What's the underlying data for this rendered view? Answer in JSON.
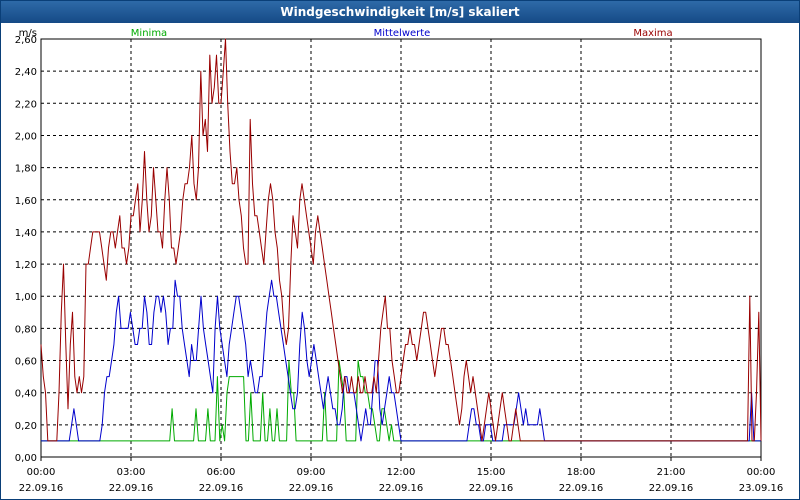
{
  "window": {
    "title": "Windgeschwindigkeit [m/s] skaliert"
  },
  "chart_data": {
    "type": "line",
    "title": "Windgeschwindigkeit [m/s] skaliert",
    "ylabel": "m/s",
    "xlabel": "",
    "ylim": [
      0,
      2.6
    ],
    "xlim": [
      0,
      24
    ],
    "grid": true,
    "y_ticks": [
      "0,00",
      "0,20",
      "0,40",
      "0,60",
      "0,80",
      "1,00",
      "1,20",
      "1,40",
      "1,60",
      "1,80",
      "2,00",
      "2,20",
      "2,40",
      "2,60"
    ],
    "x_ticks": [
      {
        "time": "00:00",
        "date": "22.09.16"
      },
      {
        "time": "03:00",
        "date": "22.09.16"
      },
      {
        "time": "06:00",
        "date": "22.09.16"
      },
      {
        "time": "09:00",
        "date": "22.09.16"
      },
      {
        "time": "12:00",
        "date": "22.09.16"
      },
      {
        "time": "15:00",
        "date": "22.09.16"
      },
      {
        "time": "18:00",
        "date": "22.09.16"
      },
      {
        "time": "21:00",
        "date": "22.09.16"
      },
      {
        "time": "00:00",
        "date": "23.09.16"
      }
    ],
    "series": [
      {
        "name": "Minima",
        "color": "#00aa00",
        "values": [
          0.1,
          0.1,
          0.1,
          0.1,
          0.1,
          0.1,
          0.1,
          0.1,
          0.1,
          0.1,
          0.1,
          0.1,
          0.1,
          0.1,
          0.1,
          0.1,
          0.1,
          0.1,
          0.1,
          0.1,
          0.1,
          0.1,
          0.1,
          0.1,
          0.1,
          0.1,
          0.1,
          0.1,
          0.1,
          0.1,
          0.1,
          0.1,
          0.1,
          0.1,
          0.1,
          0.1,
          0.1,
          0.1,
          0.1,
          0.1,
          0.1,
          0.1,
          0.1,
          0.1,
          0.1,
          0.1,
          0.1,
          0.1,
          0.1,
          0.1,
          0.1,
          0.1,
          0.1,
          0.1,
          0.1,
          0.3,
          0.1,
          0.1,
          0.1,
          0.1,
          0.1,
          0.1,
          0.1,
          0.1,
          0.1,
          0.3,
          0.1,
          0.1,
          0.1,
          0.1,
          0.3,
          0.1,
          0.1,
          0.1,
          0.5,
          0.1,
          0.2,
          0.1,
          0.4,
          0.5,
          0.5,
          0.5,
          0.5,
          0.5,
          0.5,
          0.5,
          0.1,
          0.1,
          0.4,
          0.1,
          0.1,
          0.1,
          0.1,
          0.4,
          0.1,
          0.1,
          0.3,
          0.1,
          0.1,
          0.3,
          0.1,
          0.1,
          0.1,
          0.1,
          0.6,
          0.4,
          0.4,
          0.1,
          0.1,
          0.1,
          0.1,
          0.1,
          0.1,
          0.1,
          0.1,
          0.1,
          0.1,
          0.1,
          0.1,
          0.4,
          0.1,
          0.1,
          0.1,
          0.1,
          0.1,
          0.6,
          0.5,
          0.4,
          0.1,
          0.1,
          0.1,
          0.1,
          0.1,
          0.6,
          0.5,
          0.5,
          0.4,
          0.4,
          0.3,
          0.3,
          0.2,
          0.1,
          0.1,
          0.3,
          0.3,
          0.2,
          0.1,
          0.2,
          0.1,
          0.1,
          0.1,
          0.1,
          0.1,
          0.1,
          0.1,
          0.1,
          0.1,
          0.1,
          0.1,
          0.1,
          0.1,
          0.1,
          0.1,
          0.1,
          0.1,
          0.1,
          0.1,
          0.1,
          0.1,
          0.1,
          0.1,
          0.1,
          0.1,
          0.1,
          0.1,
          0.1,
          0.1,
          0.1,
          0.1,
          0.1,
          0.1,
          0.1,
          0.1,
          0.1,
          0.1,
          0.1,
          0.1,
          0.1,
          0.1,
          0.1,
          0.1,
          0.1,
          0.1,
          0.1,
          0.1,
          0.1,
          0.1,
          0.1,
          0.1,
          0.1,
          0.1,
          0.1,
          0.1,
          0.1,
          0.1,
          0.1,
          0.1,
          0.1,
          0.1,
          0.1,
          0.1,
          0.1,
          0.1,
          0.1,
          0.1,
          0.1,
          0.1,
          0.1,
          0.1,
          0.1,
          0.1,
          0.1,
          0.1,
          0.1,
          0.1,
          0.1,
          0.1,
          0.1,
          0.1,
          0.1,
          0.1,
          0.1,
          0.1,
          0.1,
          0.1,
          0.1,
          0.1,
          0.1,
          0.1,
          0.1,
          0.1,
          0.1,
          0.1,
          0.1,
          0.1,
          0.1,
          0.1,
          0.1,
          0.1,
          0.1,
          0.1,
          0.1,
          0.1,
          0.1,
          0.1,
          0.1,
          0.1,
          0.1,
          0.1,
          0.1,
          0.1,
          0.1,
          0.1,
          0.1,
          0.1,
          0.1,
          0.1,
          0.1,
          0.1,
          0.1,
          0.1,
          0.1,
          0.1,
          0.1,
          0.1,
          0.1,
          0.1,
          0.1,
          0.1,
          0.1,
          0.1,
          0.1,
          0.1,
          0.1,
          0.1,
          0.1,
          0.1,
          0.1,
          0.1,
          0.1,
          0.1,
          0.1,
          0.1,
          0.1,
          0.1,
          0.1,
          0.1,
          0.1,
          0.1,
          0.1,
          0.1,
          0.1,
          0.1
        ]
      },
      {
        "name": "Mittelwerte",
        "color": "#0000cc",
        "values": [
          0.1,
          0.1,
          0.1,
          0.1,
          0.1,
          0.1,
          0.1,
          0.1,
          0.1,
          0.1,
          0.1,
          0.1,
          0.1,
          0.2,
          0.3,
          0.2,
          0.1,
          0.1,
          0.1,
          0.1,
          0.1,
          0.1,
          0.1,
          0.1,
          0.1,
          0.1,
          0.2,
          0.4,
          0.5,
          0.5,
          0.6,
          0.7,
          0.9,
          1.0,
          0.8,
          0.8,
          0.8,
          0.8,
          0.9,
          0.8,
          0.7,
          0.7,
          0.8,
          0.8,
          1.0,
          0.9,
          0.7,
          0.7,
          0.9,
          1.0,
          1.0,
          0.9,
          1.0,
          0.9,
          0.7,
          0.8,
          0.8,
          1.1,
          1.0,
          1.0,
          0.8,
          0.7,
          0.6,
          0.5,
          0.7,
          0.6,
          0.6,
          0.8,
          1.0,
          0.8,
          0.7,
          0.6,
          0.5,
          0.4,
          0.8,
          1.0,
          0.8,
          0.7,
          0.6,
          0.5,
          0.7,
          0.8,
          0.9,
          1.0,
          1.0,
          0.9,
          0.8,
          0.7,
          0.5,
          0.6,
          0.5,
          0.4,
          0.4,
          0.5,
          0.5,
          0.7,
          0.9,
          1.0,
          1.1,
          1.0,
          1.0,
          0.9,
          0.8,
          0.7,
          0.6,
          0.5,
          0.4,
          0.3,
          0.3,
          0.4,
          0.7,
          0.9,
          0.8,
          0.6,
          0.5,
          0.6,
          0.7,
          0.6,
          0.5,
          0.4,
          0.3,
          0.4,
          0.5,
          0.4,
          0.3,
          0.3,
          0.2,
          0.2,
          0.3,
          0.5,
          0.5,
          0.4,
          0.4,
          0.4,
          0.3,
          0.2,
          0.1,
          0.2,
          0.3,
          0.2,
          0.2,
          0.4,
          0.6,
          0.6,
          0.3,
          0.2,
          0.3,
          0.4,
          0.5,
          0.4,
          0.4,
          0.3,
          0.2,
          0.1,
          0.1,
          0.1,
          0.1,
          0.1,
          0.1,
          0.1,
          0.1,
          0.1,
          0.1,
          0.1,
          0.1,
          0.1,
          0.1,
          0.1,
          0.1,
          0.1,
          0.1,
          0.1,
          0.1,
          0.1,
          0.1,
          0.1,
          0.1,
          0.1,
          0.1,
          0.1,
          0.1,
          0.1,
          0.2,
          0.3,
          0.3,
          0.2,
          0.2,
          0.1,
          0.1,
          0.2,
          0.2,
          0.2,
          0.1,
          0.1,
          0.1,
          0.1,
          0.1,
          0.2,
          0.2,
          0.2,
          0.2,
          0.2,
          0.3,
          0.4,
          0.3,
          0.2,
          0.3,
          0.2,
          0.2,
          0.2,
          0.2,
          0.2,
          0.3,
          0.2,
          0.1,
          0.1,
          0.1,
          0.1,
          0.1,
          0.1,
          0.1,
          0.1,
          0.1,
          0.1,
          0.1,
          0.1,
          0.1,
          0.1,
          0.1,
          0.1,
          0.1,
          0.1,
          0.1,
          0.1,
          0.1,
          0.1,
          0.1,
          0.1,
          0.1,
          0.1,
          0.1,
          0.1,
          0.1,
          0.1,
          0.1,
          0.1,
          0.1,
          0.1,
          0.1,
          0.1,
          0.1,
          0.1,
          0.1,
          0.1,
          0.1,
          0.1,
          0.1,
          0.1,
          0.1,
          0.1,
          0.1,
          0.1,
          0.1,
          0.1,
          0.1,
          0.1,
          0.1,
          0.1,
          0.1,
          0.1,
          0.1,
          0.1,
          0.1,
          0.1,
          0.1,
          0.1,
          0.1,
          0.1,
          0.1,
          0.1,
          0.1,
          0.1,
          0.1,
          0.1,
          0.1,
          0.1,
          0.1,
          0.1,
          0.1,
          0.1,
          0.1,
          0.1,
          0.1,
          0.1,
          0.1,
          0.1,
          0.1,
          0.1,
          0.1,
          0.1,
          0.1,
          0.1,
          0.4,
          0.1,
          0.1,
          0.1,
          0.1
        ]
      },
      {
        "name": "Maxima",
        "color": "#990000",
        "values": [
          0.7,
          0.5,
          0.4,
          0.1,
          0.1,
          0.1,
          0.1,
          0.1,
          0.4,
          0.9,
          1.2,
          0.7,
          0.3,
          0.7,
          0.9,
          0.5,
          0.4,
          0.5,
          0.4,
          0.5,
          1.2,
          1.2,
          1.3,
          1.4,
          1.4,
          1.4,
          1.4,
          1.3,
          1.2,
          1.1,
          1.3,
          1.4,
          1.4,
          1.3,
          1.4,
          1.5,
          1.3,
          1.3,
          1.2,
          1.3,
          1.5,
          1.5,
          1.6,
          1.7,
          1.4,
          1.6,
          1.9,
          1.6,
          1.4,
          1.5,
          1.8,
          1.6,
          1.4,
          1.4,
          1.3,
          1.6,
          1.8,
          1.6,
          1.3,
          1.3,
          1.2,
          1.3,
          1.4,
          1.6,
          1.7,
          1.7,
          1.8,
          2.0,
          1.7,
          1.6,
          1.8,
          2.4,
          2.0,
          2.1,
          1.9,
          2.5,
          2.2,
          2.3,
          2.5,
          2.2,
          2.2,
          2.4,
          2.6,
          2.2,
          1.9,
          1.7,
          1.7,
          1.8,
          1.6,
          1.5,
          1.3,
          1.2,
          1.2,
          2.1,
          1.7,
          1.5,
          1.5,
          1.4,
          1.3,
          1.2,
          1.4,
          1.6,
          1.7,
          1.6,
          1.4,
          1.3,
          1.1,
          1.0,
          0.8,
          0.7,
          0.8,
          1.2,
          1.5,
          1.4,
          1.3,
          1.6,
          1.7,
          1.6,
          1.5,
          1.4,
          1.3,
          1.2,
          1.4,
          1.5,
          1.4,
          1.3,
          1.2,
          1.1,
          1.0,
          0.9,
          0.8,
          0.7,
          0.6,
          0.5,
          0.4,
          0.5,
          0.4,
          0.4,
          0.5,
          0.4,
          0.4,
          0.5,
          0.4,
          0.4,
          0.5,
          0.4,
          0.4,
          0.4,
          0.5,
          0.4,
          0.6,
          0.8,
          0.9,
          1.0,
          0.8,
          0.8,
          0.6,
          0.5,
          0.4,
          0.4,
          0.5,
          0.6,
          0.7,
          0.7,
          0.8,
          0.7,
          0.7,
          0.6,
          0.7,
          0.8,
          0.9,
          0.9,
          0.8,
          0.7,
          0.6,
          0.5,
          0.6,
          0.7,
          0.8,
          0.8,
          0.7,
          0.7,
          0.6,
          0.5,
          0.4,
          0.3,
          0.2,
          0.3,
          0.5,
          0.6,
          0.5,
          0.4,
          0.5,
          0.4,
          0.3,
          0.2,
          0.1,
          0.2,
          0.3,
          0.4,
          0.3,
          0.2,
          0.1,
          0.2,
          0.3,
          0.4,
          0.3,
          0.2,
          0.1,
          0.1,
          0.2,
          0.3,
          0.2,
          0.1,
          0.1,
          0.1,
          0.1,
          0.1,
          0.1,
          0.1,
          0.1,
          0.1,
          0.1,
          0.1,
          0.1,
          0.1,
          0.1,
          0.1,
          0.1,
          0.1,
          0.1,
          0.1,
          0.1,
          0.1,
          0.1,
          0.1,
          0.1,
          0.1,
          0.1,
          0.1,
          0.1,
          0.1,
          0.1,
          0.1,
          0.1,
          0.1,
          0.1,
          0.1,
          0.1,
          0.1,
          0.1,
          0.1,
          0.1,
          0.1,
          0.1,
          0.1,
          0.1,
          0.1,
          0.1,
          0.1,
          0.1,
          0.1,
          0.1,
          0.1,
          0.1,
          0.1,
          0.1,
          0.1,
          0.1,
          0.1,
          0.1,
          0.1,
          0.1,
          0.1,
          0.1,
          0.1,
          0.1,
          0.1,
          0.1,
          0.1,
          0.1,
          0.1,
          0.1,
          0.1,
          0.1,
          0.1,
          0.1,
          0.1,
          0.1,
          0.1,
          0.1,
          0.1,
          0.1,
          0.1,
          0.1,
          0.1,
          0.1,
          0.1,
          0.1,
          0.1,
          0.1,
          0.1,
          0.1,
          0.1,
          0.1,
          0.1,
          0.1,
          0.1,
          0.1,
          0.1,
          0.1,
          0.1,
          0.1,
          0.1,
          0.1,
          1.0,
          0.1,
          0.1,
          0.4,
          0.9,
          0.1
        ]
      }
    ]
  }
}
